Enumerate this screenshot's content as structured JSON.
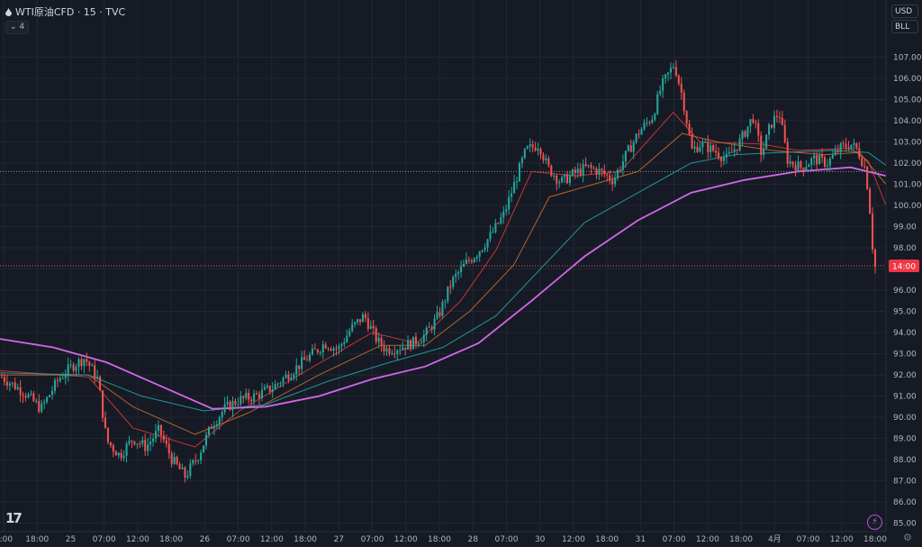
{
  "header": {
    "symbol_line": "WTI原油CFD · 15 · TVC",
    "indicator_count": "4"
  },
  "scale_buttons": {
    "currency": "USD",
    "unit": "BLL"
  },
  "last_price_label": "14:00",
  "colors": {
    "background": "#161a25",
    "grid": "#232733",
    "up": "#26a69a",
    "down": "#ef5350",
    "ma_fast": "#d8383d",
    "ma_mid": "#c26a2c",
    "ma_slow": "#1fa3a0",
    "ma_long": "#d367e8",
    "price_label": "#f23645"
  },
  "icons": [
    "drop-icon",
    "chevron-down-icon",
    "tradingview-logo",
    "lightning-icon",
    "gear-icon"
  ],
  "chart_data": {
    "type": "candlestick",
    "title": "WTI原油CFD · 15 · TVC",
    "ylim": [
      84.6,
      108.0
    ],
    "y_ticks": [
      85.0,
      86.0,
      87.0,
      88.0,
      89.0,
      90.0,
      91.0,
      92.0,
      93.0,
      94.0,
      95.0,
      96.0,
      97.0,
      98.0,
      99.0,
      100.0,
      101.0,
      102.0,
      103.0,
      104.0,
      105.0,
      106.0,
      107.0
    ],
    "x_ticks": [
      "2:00",
      "18:00",
      "25",
      "07:00",
      "12:00",
      "18:00",
      "26",
      "07:00",
      "12:00",
      "18:00",
      "27",
      "07:00",
      "12:00",
      "18:00",
      "28",
      "07:00",
      "30",
      "12:00",
      "18:00",
      "31",
      "07:00",
      "12:00",
      "18:00",
      "4月",
      "07:00",
      "12:00",
      "18:00"
    ],
    "crosshair_price": 101.6,
    "last_price": 97.15,
    "close_path": [
      [
        0,
        91.9
      ],
      [
        0.025,
        91.2
      ],
      [
        0.045,
        90.4
      ],
      [
        0.065,
        91.8
      ],
      [
        0.08,
        92.4
      ],
      [
        0.095,
        92.8
      ],
      [
        0.11,
        91.8
      ],
      [
        0.12,
        88.9
      ],
      [
        0.135,
        88.2
      ],
      [
        0.15,
        89.0
      ],
      [
        0.165,
        88.6
      ],
      [
        0.18,
        89.4
      ],
      [
        0.195,
        88.0
      ],
      [
        0.21,
        87.2
      ],
      [
        0.225,
        88.2
      ],
      [
        0.24,
        89.6
      ],
      [
        0.255,
        90.4
      ],
      [
        0.27,
        90.8
      ],
      [
        0.29,
        91.0
      ],
      [
        0.31,
        91.4
      ],
      [
        0.33,
        92.1
      ],
      [
        0.35,
        92.8
      ],
      [
        0.37,
        93.5
      ],
      [
        0.385,
        93.2
      ],
      [
        0.4,
        94.2
      ],
      [
        0.415,
        94.8
      ],
      [
        0.43,
        93.6
      ],
      [
        0.44,
        93.2
      ],
      [
        0.455,
        93.3
      ],
      [
        0.47,
        93.5
      ],
      [
        0.485,
        93.9
      ],
      [
        0.5,
        94.8
      ],
      [
        0.515,
        96.4
      ],
      [
        0.53,
        97.2
      ],
      [
        0.545,
        97.8
      ],
      [
        0.56,
        98.6
      ],
      [
        0.575,
        99.6
      ],
      [
        0.59,
        101.4
      ],
      [
        0.6,
        102.6
      ],
      [
        0.615,
        102.9
      ],
      [
        0.625,
        101.8
      ],
      [
        0.64,
        101.1
      ],
      [
        0.655,
        101.5
      ],
      [
        0.67,
        101.8
      ],
      [
        0.685,
        101.6
      ],
      [
        0.7,
        101.2
      ],
      [
        0.715,
        102.4
      ],
      [
        0.73,
        103.5
      ],
      [
        0.745,
        104.2
      ],
      [
        0.755,
        105.6
      ],
      [
        0.77,
        106.7
      ],
      [
        0.78,
        105.0
      ],
      [
        0.79,
        102.6
      ],
      [
        0.8,
        102.9
      ],
      [
        0.815,
        102.6
      ],
      [
        0.83,
        102.2
      ],
      [
        0.845,
        103.0
      ],
      [
        0.86,
        104.2
      ],
      [
        0.87,
        102.4
      ],
      [
        0.88,
        103.8
      ],
      [
        0.89,
        104.4
      ],
      [
        0.9,
        102.1
      ],
      [
        0.915,
        101.8
      ],
      [
        0.93,
        102.2
      ],
      [
        0.945,
        102.0
      ],
      [
        0.96,
        102.7
      ],
      [
        0.972,
        102.9
      ],
      [
        0.98,
        102.6
      ],
      [
        0.988,
        101.8
      ],
      [
        0.993,
        100.4
      ],
      [
        0.996,
        98.4
      ],
      [
        1.0,
        97.1
      ]
    ],
    "moving_averages": [
      {
        "path": [
          [
            0,
            92.2
          ],
          [
            0.1,
            91.9
          ],
          [
            0.15,
            89.5
          ],
          [
            0.22,
            88.6
          ],
          [
            0.27,
            90.3
          ],
          [
            0.35,
            92.3
          ],
          [
            0.42,
            94.0
          ],
          [
            0.47,
            93.5
          ],
          [
            0.52,
            95.5
          ],
          [
            0.56,
            97.9
          ],
          [
            0.6,
            101.6
          ],
          [
            0.65,
            101.4
          ],
          [
            0.7,
            101.6
          ],
          [
            0.76,
            104.4
          ],
          [
            0.79,
            103.0
          ],
          [
            0.86,
            102.9
          ],
          [
            0.9,
            102.6
          ],
          [
            0.96,
            102.7
          ],
          [
            0.98,
            102.1
          ],
          [
            1.0,
            100.0
          ]
        ]
      },
      {
        "path": [
          [
            0,
            92.0
          ],
          [
            0.1,
            92.0
          ],
          [
            0.15,
            90.5
          ],
          [
            0.22,
            89.2
          ],
          [
            0.28,
            90.2
          ],
          [
            0.36,
            92.0
          ],
          [
            0.43,
            93.4
          ],
          [
            0.48,
            93.4
          ],
          [
            0.53,
            95.0
          ],
          [
            0.58,
            97.2
          ],
          [
            0.62,
            100.4
          ],
          [
            0.67,
            101.0
          ],
          [
            0.72,
            101.6
          ],
          [
            0.77,
            103.4
          ],
          [
            0.81,
            103.0
          ],
          [
            0.87,
            102.6
          ],
          [
            0.93,
            102.4
          ],
          [
            0.97,
            102.5
          ],
          [
            1.0,
            101.0
          ]
        ]
      },
      {
        "path": [
          [
            0,
            92.1
          ],
          [
            0.1,
            92.0
          ],
          [
            0.16,
            91.0
          ],
          [
            0.23,
            90.3
          ],
          [
            0.3,
            90.6
          ],
          [
            0.37,
            91.7
          ],
          [
            0.44,
            92.6
          ],
          [
            0.5,
            93.3
          ],
          [
            0.56,
            94.8
          ],
          [
            0.61,
            97.0
          ],
          [
            0.66,
            99.2
          ],
          [
            0.72,
            100.6
          ],
          [
            0.78,
            102.0
          ],
          [
            0.83,
            102.4
          ],
          [
            0.88,
            102.5
          ],
          [
            0.94,
            102.6
          ],
          [
            0.98,
            102.5
          ],
          [
            1.0,
            101.9
          ]
        ]
      },
      {
        "path": [
          [
            0,
            93.7
          ],
          [
            0.06,
            93.3
          ],
          [
            0.12,
            92.6
          ],
          [
            0.18,
            91.5
          ],
          [
            0.24,
            90.4
          ],
          [
            0.3,
            90.5
          ],
          [
            0.36,
            91.0
          ],
          [
            0.42,
            91.8
          ],
          [
            0.48,
            92.4
          ],
          [
            0.54,
            93.5
          ],
          [
            0.6,
            95.5
          ],
          [
            0.66,
            97.6
          ],
          [
            0.72,
            99.3
          ],
          [
            0.78,
            100.6
          ],
          [
            0.84,
            101.2
          ],
          [
            0.9,
            101.6
          ],
          [
            0.96,
            101.8
          ],
          [
            1.0,
            101.4
          ]
        ]
      }
    ]
  }
}
